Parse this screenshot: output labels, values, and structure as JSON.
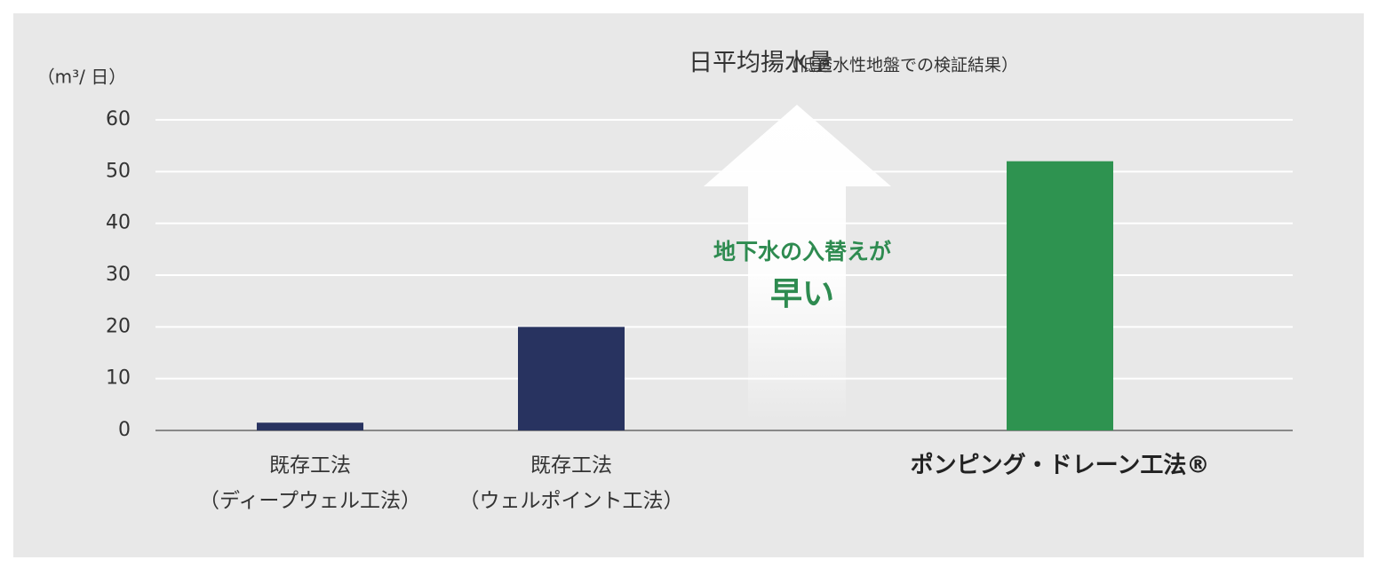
{
  "chart_data": {
    "type": "bar",
    "title": "日平均揚水量",
    "subtitle": "（低透水性地盤での検証結果）",
    "y_label": "（m³/ 日）",
    "annotation": [
      "地下水の入替えが",
      "早い"
    ],
    "categories": [
      [
        "既存工法",
        "（ディープウェル工法）"
      ],
      [
        "既存工法",
        "（ウェルポイント工法）"
      ],
      [
        "ポンピング・ドレーン工法®"
      ]
    ],
    "values": [
      1.5,
      20,
      52
    ],
    "colors": [
      "#283360",
      "#283360",
      "#2e9350"
    ],
    "ylim": [
      0,
      60
    ],
    "yticks": [
      0,
      10,
      20,
      30,
      40,
      50,
      60
    ],
    "grid": true
  }
}
